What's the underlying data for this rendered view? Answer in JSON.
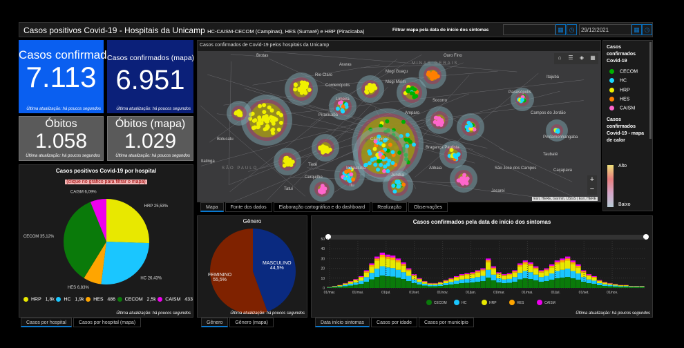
{
  "header": {
    "title": "Casos positivos Covid-19 - Hospitais da Unicamp",
    "subtitle": "HC-CAISM-CECOM (Campinas), HES (Sumaré) e HRP (Piracicaba)",
    "filter_label": "Filtrar mapa pela data do início dos sintomas",
    "start_date": "",
    "end_date": "29/12/2021"
  },
  "cards": [
    {
      "label": "Casos confirmados",
      "value": "7.113",
      "color": "#0a5ff0"
    },
    {
      "label": "Casos confirmados (mapa)",
      "value": "6.951",
      "color": "#0b2079"
    },
    {
      "label": "Óbitos",
      "value": "1.058",
      "color": "#5a5a5a"
    },
    {
      "label": "Óbitos (mapa)",
      "value": "1.029",
      "color": "#5a5a5a"
    }
  ],
  "update_text": "Última atualização: há poucos segundos",
  "map": {
    "title": "Casos confirmados de Covid-19 pelos hospitais da Unicamp",
    "attribution": "Esri, HERE, Garmin, USGS | Esri, HERE",
    "zoom_in": "+",
    "zoom_out": "−",
    "cities": [
      "Brotas",
      "Araras",
      "Rio Claro",
      "Cordeirópolis",
      "Limeira",
      "Piracicaba",
      "Botucatu",
      "Itatinga",
      "SÃO PAULO",
      "Tietê",
      "Cerquilho",
      "Tatuí",
      "Indaiatuba",
      "Campinas",
      "Jundiaí",
      "Itu",
      "Mogi Guaçu",
      "Mogi Mirim",
      "Amparo",
      "Socorro",
      "Ouro Fino",
      "MINAS GERAIS",
      "Itajubá",
      "Paraisópolis",
      "Campos do Jordão",
      "Bragança Paulista",
      "Pindamonhangaba",
      "Taubaté",
      "Caçapava",
      "São José dos Campos",
      "Jacareí",
      "Atibaia"
    ],
    "tabs": [
      "Mapa",
      "Fonte dos dados",
      "Elaboração cartográfica e do dashboard",
      "Realização",
      "Observações"
    ]
  },
  "legend": {
    "title": "Casos confirmados Covid-19",
    "items": [
      {
        "label": "CECOM",
        "color": "#00b000"
      },
      {
        "label": "HC",
        "color": "#1ad8ff"
      },
      {
        "label": "HRP",
        "color": "#f0f000"
      },
      {
        "label": "HES",
        "color": "#ff7f00"
      },
      {
        "label": "CAISM",
        "color": "#ff66cc"
      }
    ],
    "heat_title": "Casos confirmados Covid-19 - mapa de calor",
    "high": "Alto",
    "low": "Baixo"
  },
  "pie": {
    "title": "Casos positivos Covid-19 por hospital",
    "hint": "(clique no gráfico para filtrar o mapa)",
    "slices": [
      {
        "name": "HRP",
        "pct": 25.53,
        "label": "HRP 25,53%",
        "count": "1,8k",
        "color": "#e8e800"
      },
      {
        "name": "HC",
        "pct": 26.43,
        "label": "HC 26,43%",
        "count": "1,9k",
        "color": "#1ac6ff"
      },
      {
        "name": "HES",
        "pct": 6.83,
        "label": "HES 6,83%",
        "count": "486",
        "color": "#ffa500"
      },
      {
        "name": "CECOM",
        "pct": 35.12,
        "label": "CECOM 35,12%",
        "count": "2,5k",
        "color": "#0a7a0a"
      },
      {
        "name": "CAISM",
        "pct": 6.09,
        "label": "CAISM 6,09%",
        "count": "433",
        "color": "#ee00ee"
      }
    ],
    "tabs": [
      "Casos por hospital",
      "Casos por hospital (mapa)"
    ]
  },
  "gender": {
    "title": "Gênero",
    "slices": [
      {
        "name": "MASCULINO",
        "pct": 44.5,
        "pct_label": "44,5%",
        "color": "#0a2a80"
      },
      {
        "name": "FEMININO",
        "pct": 55.5,
        "pct_label": "55,5%",
        "color": "#7f2200"
      }
    ],
    "tabs": [
      "Gênero",
      "Gênero (mapa)"
    ]
  },
  "chart_data": {
    "type": "bar",
    "title": "Casos confirmados pela data de início dos sintomas",
    "stacked": true,
    "ylim": [
      0,
      50
    ],
    "yticks": [
      0,
      10,
      20,
      30,
      40,
      50
    ],
    "xticks": [
      "01/mar.",
      "01/mai.",
      "01/jul.",
      "01/set.",
      "01/nov.",
      "01/jan.",
      "01/mar.",
      "01/mai.",
      "01/jul.",
      "01/set.",
      "01/nov."
    ],
    "totals": [
      1,
      2,
      3,
      5,
      7,
      9,
      12,
      18,
      25,
      32,
      36,
      34,
      33,
      30,
      26,
      20,
      14,
      10,
      7,
      5,
      5,
      6,
      8,
      10,
      12,
      14,
      15,
      16,
      18,
      20,
      30,
      22,
      16,
      14,
      15,
      18,
      25,
      28,
      26,
      22,
      18,
      20,
      24,
      28,
      30,
      32,
      28,
      24,
      18,
      14,
      12,
      8,
      6,
      5,
      4,
      3,
      3,
      2,
      2,
      2
    ],
    "series": [
      {
        "name": "CECOM",
        "share": 0.3512,
        "color": "#0a7a0a"
      },
      {
        "name": "HC",
        "share": 0.2643,
        "color": "#1ac6ff"
      },
      {
        "name": "HRP",
        "share": 0.2553,
        "color": "#e8e800"
      },
      {
        "name": "HES",
        "share": 0.0683,
        "color": "#ffa500"
      },
      {
        "name": "CAISM",
        "share": 0.0609,
        "color": "#ee00ee"
      }
    ],
    "tabs": [
      "Data início sintomas",
      "Casos por idade",
      "Casos por município"
    ]
  }
}
